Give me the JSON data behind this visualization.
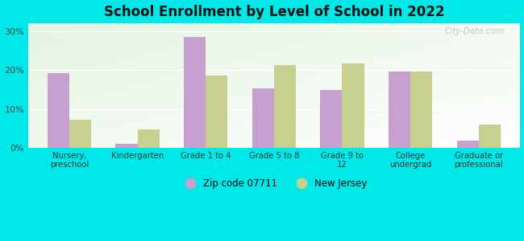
{
  "title": "School Enrollment by Level of School in 2022",
  "categories": [
    "Nursery,\npreschool",
    "Kindergarten",
    "Grade 1 to 4",
    "Grade 5 to 8",
    "Grade 9 to\n12",
    "College\nundergrad",
    "Graduate or\nprofessional"
  ],
  "zip_values": [
    19.2,
    1.0,
    28.5,
    15.3,
    14.8,
    19.7,
    1.8
  ],
  "nj_values": [
    7.3,
    4.7,
    18.7,
    21.2,
    21.8,
    19.6,
    6.0
  ],
  "zip_color": "#c8a0d0",
  "nj_color": "#c8d090",
  "background_outer": "#00e8e8",
  "ylim": [
    0,
    32
  ],
  "yticks": [
    0,
    10,
    20,
    30
  ],
  "ytick_labels": [
    "0%",
    "10%",
    "20%",
    "30%"
  ],
  "bar_width": 0.32,
  "legend_zip_label": "Zip code 07711",
  "legend_nj_label": "New Jersey",
  "watermark": "City-Data.com"
}
